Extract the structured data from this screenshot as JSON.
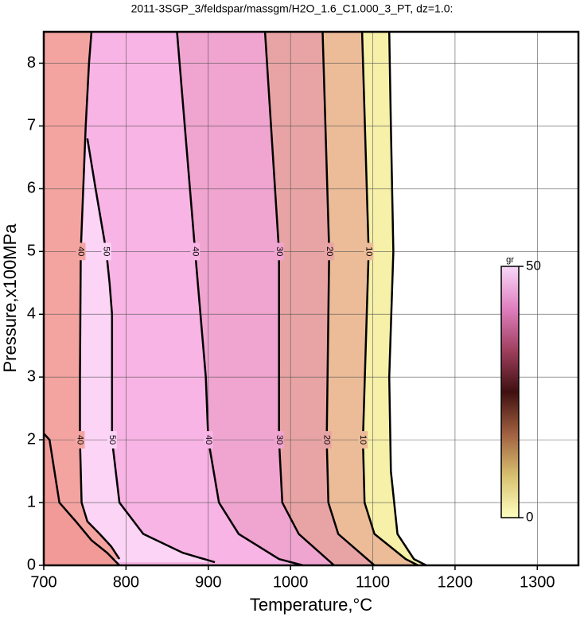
{
  "chart_data": {
    "type": "contour",
    "title": "2011-3SGP_3/feldspar/massgm/H2O_1.6_C1.000_3_PT, dz=1.0:",
    "x_label": "Temperature,°C",
    "y_label": "Pressure,x100MPa",
    "xlim": [
      700,
      1350
    ],
    "ylim": [
      0,
      8.5
    ],
    "xticks": [
      700,
      800,
      900,
      1000,
      1100,
      1200,
      1300
    ],
    "yticks": [
      0,
      1,
      2,
      3,
      4,
      5,
      6,
      7,
      8
    ],
    "grid": true,
    "contours": [
      {
        "level": 0,
        "labeled": false,
        "color": "#f6f0a8",
        "x": [
          1120,
          1122,
          1125,
          1120,
          1122,
          1130,
          1150,
          1165
        ],
        "y": [
          8.5,
          7,
          5,
          3,
          1.5,
          0.5,
          0.1,
          0
        ]
      },
      {
        "level": 10,
        "labeled": true,
        "color": "#ecbc98",
        "x": [
          1087,
          1095,
          1088,
          1090,
          1102,
          1140,
          1155
        ],
        "y": [
          8.5,
          5,
          2,
          1,
          0.5,
          0.1,
          0
        ]
      },
      {
        "level": 20,
        "labeled": true,
        "color": "#e8a4a4",
        "x": [
          1039,
          1047,
          1044,
          1046,
          1058,
          1102
        ],
        "y": [
          8.5,
          5,
          2,
          1,
          0.5,
          0
        ]
      },
      {
        "level": 30,
        "labeled": true,
        "color": "#f0a4d0",
        "x": [
          969,
          986,
          986,
          990,
          1010,
          1053
        ],
        "y": [
          8.5,
          5,
          2,
          1,
          0.5,
          0
        ]
      },
      {
        "level": 40,
        "labeled": true,
        "color": "#f8b4e4",
        "x": [
          862,
          884,
          897,
          900,
          913,
          937,
          986,
          1015
        ],
        "y": [
          8.5,
          5,
          3,
          2,
          1,
          0.5,
          0.1,
          0
        ]
      },
      {
        "level": 50,
        "labeled": true,
        "color": "#fcd4f6",
        "x": [
          753,
          763,
          776,
          780,
          783,
          783,
          792,
          821,
          869,
          908
        ],
        "y": [
          6.8,
          6,
          5,
          4.5,
          4,
          2,
          1,
          0.5,
          0.2,
          0.05
        ]
      },
      {
        "level": 40,
        "labeled": true,
        "color": "#f4a4a0",
        "x": [
          758,
          755,
          751,
          745,
          744,
          744,
          746,
          753,
          768,
          782,
          792
        ],
        "y": [
          8.5,
          8,
          7,
          5,
          3,
          2,
          1,
          0.7,
          0.5,
          0.3,
          0.1
        ]
      },
      {
        "level": 40,
        "labeled": false,
        "color": "#f29a98",
        "x": [
          700,
          707,
          719,
          739,
          758,
          777,
          792
        ],
        "y": [
          2.1,
          2,
          1,
          0.7,
          0.4,
          0.2,
          0
        ]
      }
    ],
    "colorbar": {
      "label": "gr",
      "lim": [
        0,
        50
      ],
      "ticks": [
        0,
        50
      ],
      "colors": [
        "#ffffc0",
        "#d8c070",
        "#a06040",
        "#401010",
        "#a04060",
        "#e080c0",
        "#f8d8f8"
      ]
    }
  }
}
